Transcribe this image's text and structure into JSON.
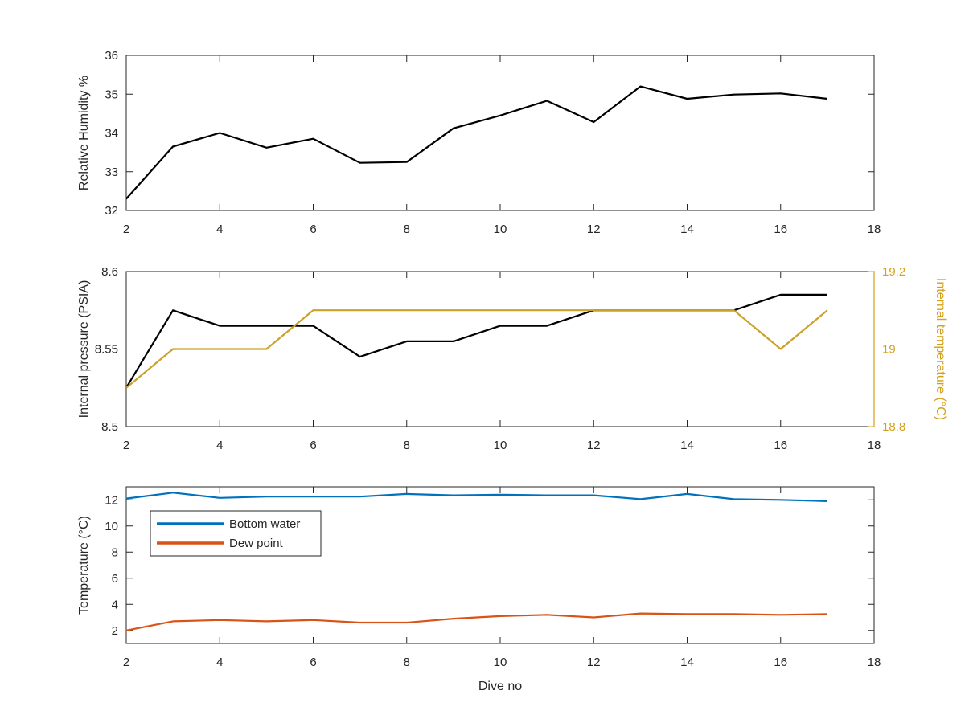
{
  "chart_data": [
    {
      "type": "line",
      "title": "",
      "xlabel": "",
      "ylabel": "Relative Humidity %",
      "xlim": [
        2,
        18
      ],
      "ylim": [
        32,
        36
      ],
      "xticks": [
        2,
        4,
        6,
        8,
        10,
        12,
        14,
        16,
        18
      ],
      "yticks": [
        32,
        33,
        34,
        35,
        36
      ],
      "x": [
        2,
        3,
        4,
        5,
        6,
        7,
        8,
        9,
        10,
        11,
        12,
        13,
        14,
        15,
        16,
        17
      ],
      "series": [
        {
          "color": "#000000",
          "values": [
            32.3,
            33.65,
            34.0,
            33.62,
            33.85,
            33.23,
            33.25,
            34.12,
            34.45,
            34.83,
            34.28,
            35.2,
            34.88,
            34.99,
            35.02,
            34.88
          ]
        }
      ],
      "grid": false,
      "legend": "none"
    },
    {
      "type": "line",
      "title": "",
      "xlabel": "",
      "ylabel": "Internal pressure (PSIA)",
      "ylabel_right": "Internal temperature (°C)",
      "xlim": [
        2,
        18
      ],
      "ylim": [
        8.5,
        8.6
      ],
      "ylim_right": [
        18.8,
        19.2
      ],
      "xticks": [
        2,
        4,
        6,
        8,
        10,
        12,
        14,
        16,
        18
      ],
      "yticks": [
        "8.5",
        "8.55",
        "8.6"
      ],
      "yticks_right": [
        "18.8",
        "19",
        "19.2"
      ],
      "right_axis_color": "#D4A017",
      "x": [
        2,
        3,
        4,
        5,
        6,
        7,
        8,
        9,
        10,
        11,
        12,
        13,
        14,
        15,
        16,
        17
      ],
      "series": [
        {
          "axis": "left",
          "color": "#000000",
          "values": [
            8.525,
            8.575,
            8.565,
            8.565,
            8.565,
            8.545,
            8.555,
            8.555,
            8.565,
            8.565,
            8.575,
            8.575,
            8.575,
            8.575,
            8.585,
            8.585
          ]
        },
        {
          "axis": "right",
          "color": "#C9A227",
          "values": [
            18.9,
            19.0,
            19.0,
            19.0,
            19.1,
            19.1,
            19.1,
            19.1,
            19.1,
            19.1,
            19.1,
            19.1,
            19.1,
            19.1,
            19.0,
            19.1
          ]
        }
      ],
      "grid": false,
      "legend": "none"
    },
    {
      "type": "line",
      "title": "",
      "xlabel": "Dive no",
      "ylabel": "Temperature (°C)",
      "xlim": [
        2,
        18
      ],
      "ylim": [
        1,
        13
      ],
      "xticks": [
        2,
        4,
        6,
        8,
        10,
        12,
        14,
        16,
        18
      ],
      "yticks": [
        2,
        4,
        6,
        8,
        10,
        12
      ],
      "x": [
        2,
        3,
        4,
        5,
        6,
        7,
        8,
        9,
        10,
        11,
        12,
        13,
        14,
        15,
        16,
        17
      ],
      "series": [
        {
          "name": "Bottom water",
          "color": "#0072BD",
          "values": [
            12.1,
            12.55,
            12.15,
            12.25,
            12.25,
            12.25,
            12.45,
            12.35,
            12.4,
            12.35,
            12.35,
            12.05,
            12.45,
            12.05,
            12.0,
            11.9
          ]
        },
        {
          "name": "Dew point",
          "color": "#D95319",
          "values": [
            2.0,
            2.7,
            2.8,
            2.7,
            2.8,
            2.6,
            2.6,
            2.9,
            3.1,
            3.2,
            3.0,
            3.3,
            3.25,
            3.25,
            3.2,
            3.25
          ]
        }
      ],
      "grid": false,
      "legend": "top-left"
    }
  ]
}
